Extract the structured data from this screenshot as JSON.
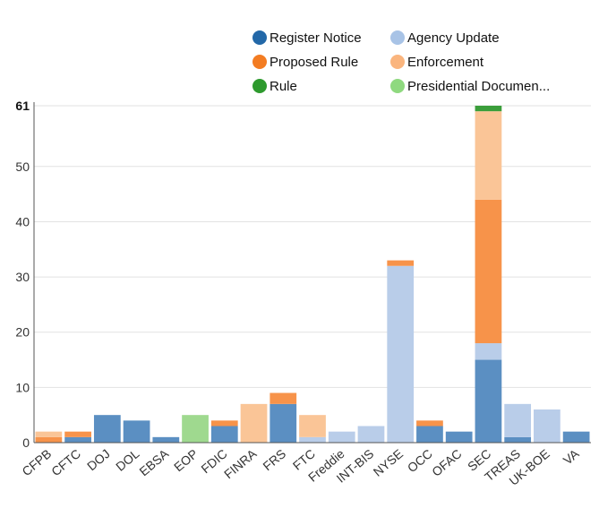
{
  "chart_data": {
    "type": "bar",
    "stacked": true,
    "categories": [
      "CFPB",
      "CFTC",
      "DOJ",
      "DOL",
      "EBSA",
      "EOP",
      "FDIC",
      "FINRA",
      "FRS",
      "FTC",
      "Freddie",
      "INT-BIS",
      "NYSE",
      "OCC",
      "OFAC",
      "SEC",
      "TREAS",
      "UK-BOE",
      "VA"
    ],
    "ylim": [
      0,
      61
    ],
    "yticks": [
      0,
      10,
      20,
      30,
      40,
      50,
      61
    ],
    "grid": true,
    "legend_position": "top",
    "series": [
      {
        "name": "Register Notice",
        "color": "#5b8fc2",
        "values": [
          0,
          1,
          5,
          4,
          1,
          0,
          3,
          0,
          7,
          0,
          0,
          0,
          0,
          3,
          2,
          15,
          1,
          0,
          2
        ]
      },
      {
        "name": "Agency Update",
        "color": "#b9cde9",
        "values": [
          0,
          0,
          0,
          0,
          0,
          0,
          0,
          0,
          0,
          1,
          2,
          3,
          32,
          0,
          0,
          3,
          6,
          6,
          0
        ]
      },
      {
        "name": "Proposed Rule",
        "color": "#f7934a",
        "values": [
          1,
          1,
          0,
          0,
          0,
          0,
          1,
          0,
          2,
          0,
          0,
          0,
          1,
          1,
          0,
          26,
          0,
          0,
          0
        ]
      },
      {
        "name": "Enforcement",
        "color": "#fac597",
        "values": [
          1,
          0,
          0,
          0,
          0,
          0,
          0,
          7,
          0,
          4,
          0,
          0,
          0,
          0,
          0,
          16,
          0,
          0,
          0
        ]
      },
      {
        "name": "Rule",
        "color": "#3b9e3b",
        "values": [
          0,
          0,
          0,
          0,
          0,
          0,
          0,
          0,
          0,
          0,
          0,
          0,
          0,
          0,
          0,
          1,
          0,
          0,
          0
        ]
      },
      {
        "name": "Presidential Documen...",
        "color": "#9fd98f",
        "values": [
          0,
          0,
          0,
          0,
          0,
          5,
          0,
          0,
          0,
          0,
          0,
          0,
          0,
          0,
          0,
          0,
          0,
          0,
          0
        ]
      }
    ]
  },
  "legend": {
    "items": [
      {
        "label": "Register Notice",
        "color": "#2368a8"
      },
      {
        "label": "Agency Update",
        "color": "#a8c3e6"
      },
      {
        "label": "Proposed Rule",
        "color": "#f37c22"
      },
      {
        "label": "Enforcement",
        "color": "#fab57e"
      },
      {
        "label": "Rule",
        "color": "#2e9a2e"
      },
      {
        "label": "Presidential Documen...",
        "color": "#8fd97f"
      }
    ]
  }
}
